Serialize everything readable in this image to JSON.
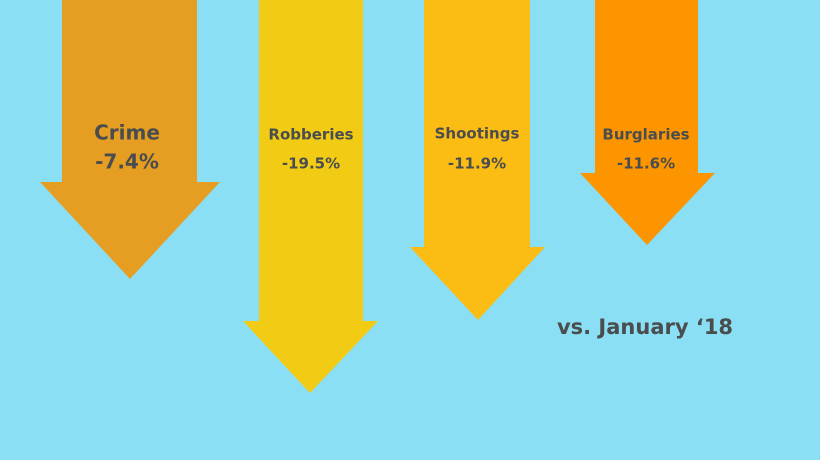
{
  "arrows": [
    {
      "label": "Crime",
      "change": "-7.4%"
    },
    {
      "label": "Robberies",
      "change": "-19.5%"
    },
    {
      "label": "Shootings",
      "change": "-11.9%"
    },
    {
      "label": "Burglaries",
      "change": "-11.6%"
    }
  ],
  "footnote": "vs. January ‘18"
}
